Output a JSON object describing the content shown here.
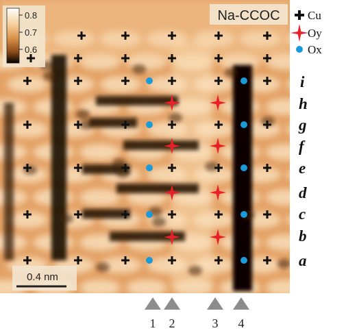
{
  "image": {
    "material_label": "Na-CCOC",
    "scale_bar_label": "0.4 nm",
    "colorbar": {
      "tick_labels": [
        "0.8",
        "0.7",
        "0.6"
      ],
      "tick_values": [
        0.8,
        0.7,
        0.6
      ],
      "colors": [
        "#ffffff",
        "#f5cf9a",
        "#d9914a",
        "#8a4a18",
        "#000000"
      ]
    }
  },
  "legend": {
    "items": [
      {
        "symbol": "cross-icon",
        "label": "Cu",
        "color": "#111111"
      },
      {
        "symbol": "star-icon",
        "label": "Oy",
        "color": "#e8202a"
      },
      {
        "symbol": "dot-icon",
        "label": "Ox",
        "color": "#1a9ad8"
      }
    ]
  },
  "row_labels": [
    "i",
    "h",
    "g",
    "f",
    "e",
    "d",
    "c",
    "b",
    "a"
  ],
  "column_markers": [
    "1",
    "2",
    "3",
    "4"
  ],
  "colors": {
    "cu": "#111111",
    "oy": "#e8202a",
    "ox": "#1a9ad8",
    "arrow": "#8c8c8c"
  }
}
